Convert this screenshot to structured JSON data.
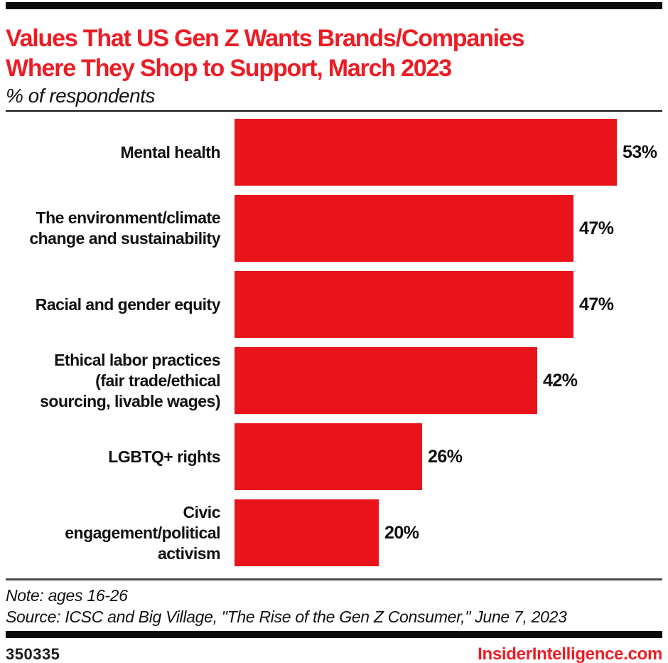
{
  "header": {
    "top_bar_color": "#0a0a0a",
    "title": "Values That US Gen Z Wants Brands/Companies\nWhere They Shop to Support, March 2023",
    "title_color": "#ed1c24",
    "subtitle": "% of respondents"
  },
  "chart_data": {
    "type": "bar",
    "orientation": "horizontal",
    "title": "Values That US Gen Z Wants Brands/Companies Where They Shop to Support, March 2023",
    "subtitle": "% of respondents",
    "categories": [
      "Mental health",
      "The environment/climate change and sustainability",
      "Racial and gender equity",
      "Ethical labor practices (fair trade/ethical sourcing, livable wages)",
      "LGBTQ+ rights",
      "Civic engagement/political activism"
    ],
    "categories_display": [
      "Mental health",
      "The environment/climate\nchange and sustainability",
      "Racial and gender equity",
      "Ethical labor practices\n(fair trade/ethical\nsourcing, livable wages)",
      "LGBTQ+ rights",
      "Civic\nengagement/political\nactivism"
    ],
    "values": [
      53,
      47,
      47,
      42,
      26,
      20
    ],
    "value_labels": [
      "53%",
      "47%",
      "47%",
      "42%",
      "26%",
      "20%"
    ],
    "unit": "% of respondents",
    "bar_color": "#e9131b",
    "xlim": [
      0,
      59
    ],
    "grid": false,
    "legend": "none",
    "data_labels": "outside-end"
  },
  "footer": {
    "note": "Note: ages 16-26",
    "source": "Source: ICSC and Big Village, \"The Rise of the Gen Z Consumer,\" June 7, 2023",
    "chart_id": "350335",
    "brand": "InsiderIntelligence.com",
    "brand_color": "#ed1c24"
  }
}
